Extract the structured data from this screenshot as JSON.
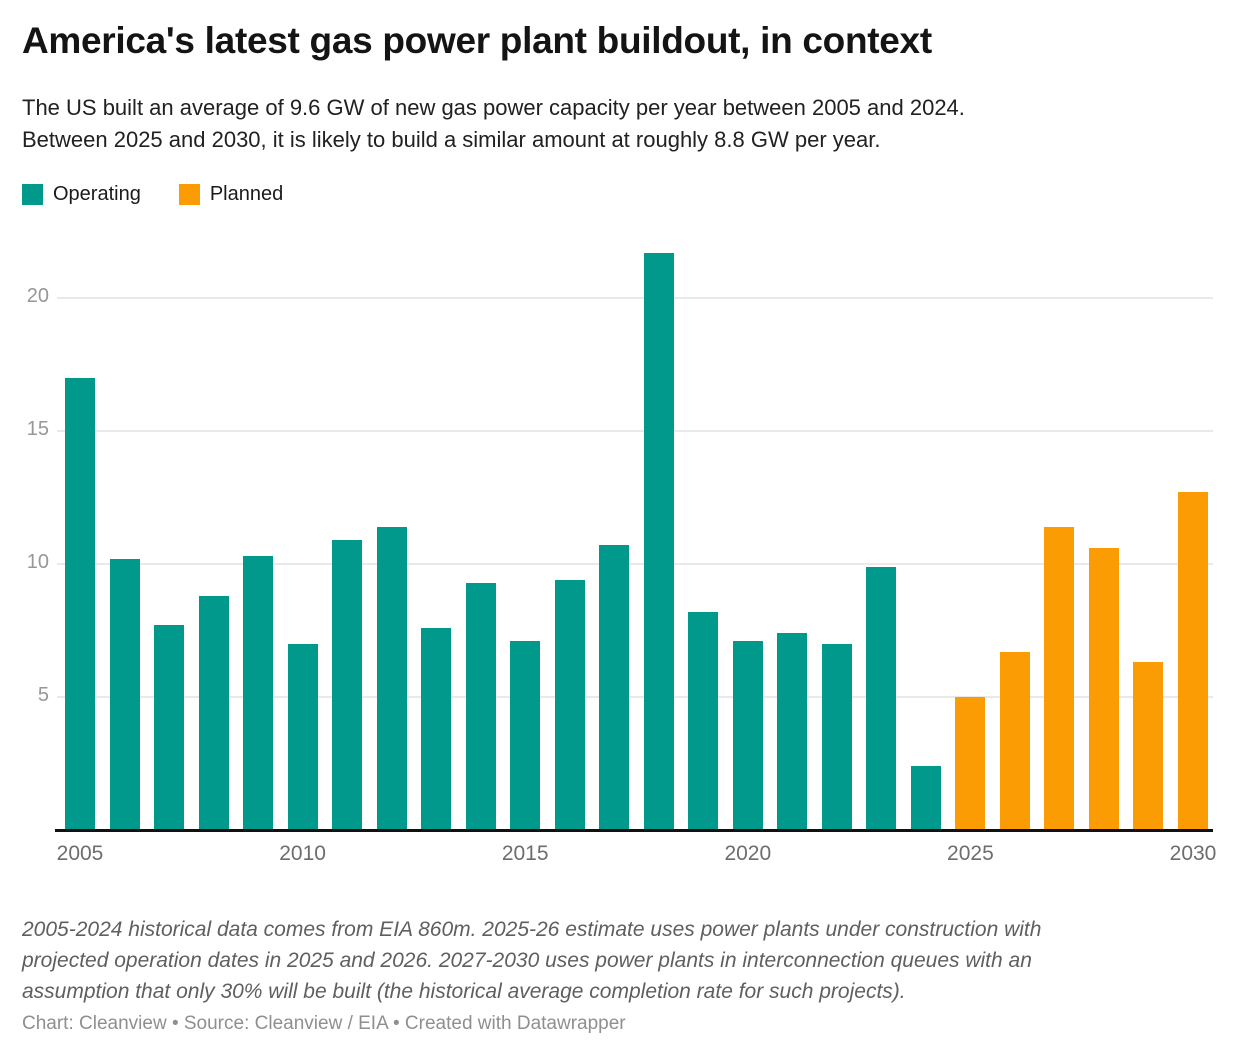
{
  "header": {
    "title": "America's latest gas power plant buildout, in context",
    "subtitle_lines": [
      "The US built an average of 9.6 GW of new gas power capacity per year between 2005 and 2024.",
      "Between 2025 and 2030, it is likely to build a similar amount at roughly 8.8 GW per year."
    ]
  },
  "legend": {
    "items": [
      {
        "label": "Operating",
        "color": "#00998C"
      },
      {
        "label": "Planned",
        "color": "#FC9C04"
      }
    ]
  },
  "chart_data": {
    "type": "bar",
    "title": "America's latest gas power plant buildout, in context",
    "unit": "GW",
    "ylabel": "",
    "xlabel": "",
    "categories": [
      2005,
      2006,
      2007,
      2008,
      2009,
      2010,
      2011,
      2012,
      2013,
      2014,
      2015,
      2016,
      2017,
      2018,
      2019,
      2020,
      2021,
      2022,
      2023,
      2024,
      2025,
      2026,
      2027,
      2028,
      2029,
      2030
    ],
    "series": [
      {
        "name": "Operating",
        "color": "#00998C",
        "years": [
          2005,
          2006,
          2007,
          2008,
          2009,
          2010,
          2011,
          2012,
          2013,
          2014,
          2015,
          2016,
          2017,
          2018,
          2019,
          2020,
          2021,
          2022,
          2023,
          2024
        ],
        "values": [
          17.0,
          10.2,
          7.7,
          8.8,
          10.3,
          7.0,
          10.9,
          11.4,
          7.6,
          9.3,
          7.1,
          9.4,
          10.7,
          21.7,
          8.2,
          7.1,
          7.4,
          7.0,
          9.9,
          2.4
        ]
      },
      {
        "name": "Planned",
        "color": "#FC9C04",
        "years": [
          2025,
          2026,
          2027,
          2028,
          2029,
          2030
        ],
        "values": [
          5.0,
          6.7,
          11.4,
          10.6,
          6.3,
          12.7
        ]
      }
    ],
    "ylim": [
      0,
      22
    ],
    "y_ticks": [
      5,
      10,
      15,
      20
    ],
    "x_tick_labels": [
      "2005",
      "2010",
      "2015",
      "2020",
      "2025",
      "2030"
    ],
    "grid": "horizontal",
    "legend_position": "top-left"
  },
  "footer": {
    "note_lines": [
      "2005-2024 historical data comes from EIA 860m. 2025-26 estimate uses power plants under construction with",
      "projected operation dates in 2025 and 2026. 2027-2030 uses power plants in interconnection queues with an",
      "assumption that only 30% will be built (the historical average completion rate for such projects)."
    ],
    "byline": "Chart: Cleanview • Source: Cleanview / EIA • Created with Datawrapper"
  }
}
